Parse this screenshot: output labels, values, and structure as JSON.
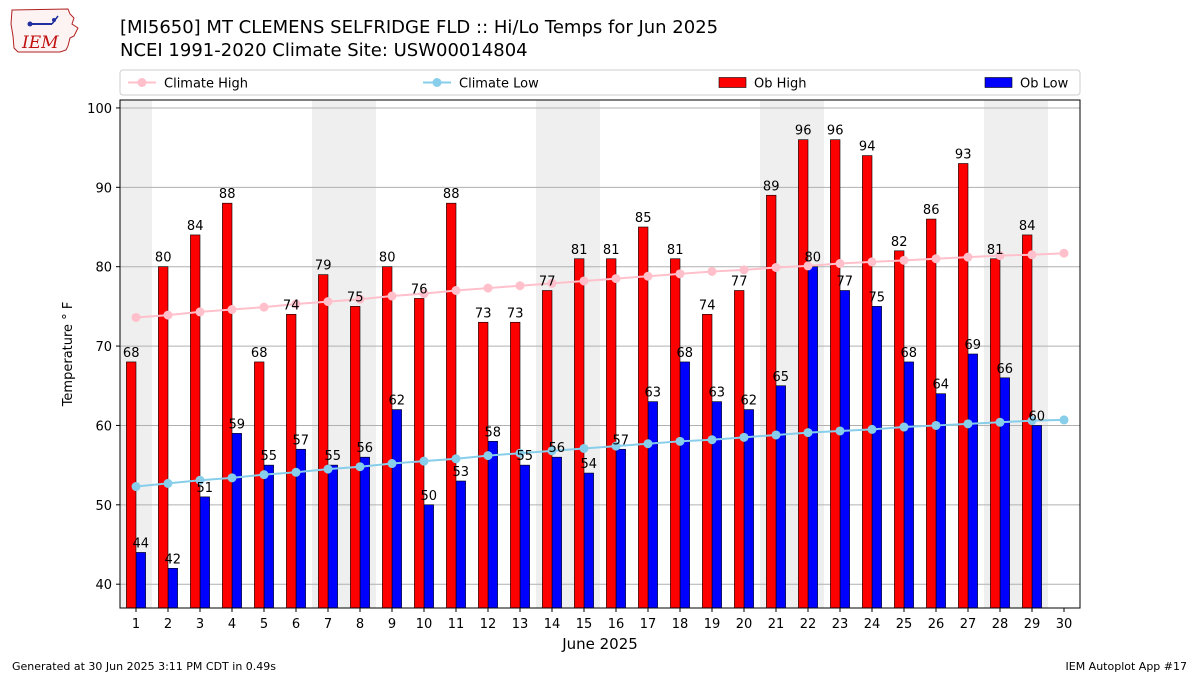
{
  "header": {
    "title_line1": "[MI5650] MT CLEMENS SELFRIDGE FLD :: Hi/Lo Temps for Jun 2025",
    "title_line2": "NCEI 1991-2020 Climate Site: USW00014804"
  },
  "logo": {
    "text": "IEM"
  },
  "footer": {
    "generated": "Generated at 30 Jun 2025 3:11 PM CDT in 0.49s",
    "app": "IEM Autoplot App #17"
  },
  "chart_data": {
    "type": "bar",
    "xlabel": "June 2025",
    "ylabel": "Temperature ° F",
    "ylim": [
      37,
      101
    ],
    "xlim": [
      0.5,
      30.5
    ],
    "yticks": [
      40,
      50,
      60,
      70,
      80,
      90,
      100
    ],
    "grid": "horizontal",
    "legend_placement": "top, above plot",
    "categories": [
      "1",
      "2",
      "3",
      "4",
      "5",
      "6",
      "7",
      "8",
      "9",
      "10",
      "11",
      "12",
      "13",
      "14",
      "15",
      "16",
      "17",
      "18",
      "19",
      "20",
      "21",
      "22",
      "23",
      "24",
      "25",
      "26",
      "27",
      "28",
      "29",
      "30"
    ],
    "weekend_bands": [
      [
        0.5,
        1.5
      ],
      [
        6.5,
        8.5
      ],
      [
        13.5,
        15.5
      ],
      [
        20.5,
        22.5
      ],
      [
        27.5,
        29.5
      ]
    ],
    "series": [
      {
        "name": "Ob High",
        "kind": "bar",
        "color": "#ff0000",
        "values": [
          68,
          80,
          84,
          88,
          68,
          74,
          79,
          75,
          80,
          76,
          88,
          73,
          73,
          77,
          81,
          81,
          85,
          81,
          74,
          77,
          89,
          96,
          96,
          94,
          82,
          86,
          93,
          81,
          84,
          null
        ]
      },
      {
        "name": "Ob Low",
        "kind": "bar",
        "color": "#0000ff",
        "values": [
          44,
          42,
          51,
          59,
          55,
          57,
          55,
          56,
          62,
          50,
          53,
          58,
          55,
          56,
          54,
          57,
          63,
          68,
          63,
          62,
          65,
          80,
          77,
          75,
          68,
          64,
          69,
          66,
          60,
          null
        ]
      },
      {
        "name": "Climate High",
        "kind": "line",
        "color": "#ffc0cb",
        "values": [
          73.6,
          73.9,
          74.3,
          74.6,
          74.9,
          75.3,
          75.6,
          75.9,
          76.3,
          76.6,
          77.0,
          77.3,
          77.6,
          77.9,
          78.2,
          78.5,
          78.8,
          79.1,
          79.4,
          79.6,
          79.9,
          80.1,
          80.4,
          80.6,
          80.8,
          81.0,
          81.2,
          81.4,
          81.5,
          81.7
        ]
      },
      {
        "name": "Climate Low",
        "kind": "line",
        "color": "#87ceeb",
        "values": [
          52.3,
          52.7,
          53.1,
          53.4,
          53.8,
          54.1,
          54.5,
          54.8,
          55.2,
          55.5,
          55.8,
          56.2,
          56.5,
          56.8,
          57.1,
          57.4,
          57.7,
          58.0,
          58.2,
          58.5,
          58.8,
          59.1,
          59.3,
          59.5,
          59.8,
          60.0,
          60.2,
          60.4,
          60.6,
          60.7
        ]
      }
    ]
  }
}
